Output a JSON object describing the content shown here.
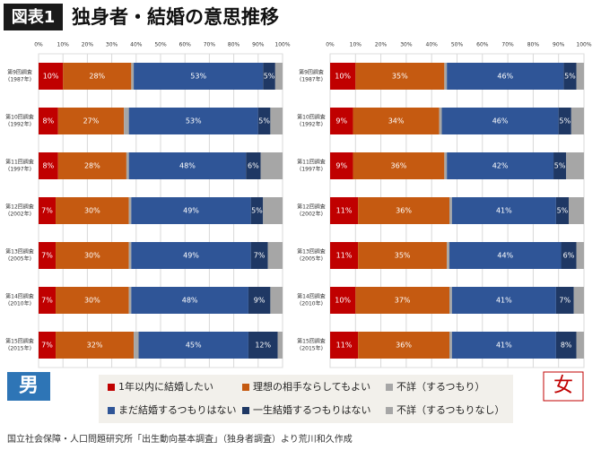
{
  "header": {
    "label": "図表1",
    "title": "独身者・結婚の意思推移"
  },
  "chart_data": [
    {
      "type": "stacked-bar-horizontal",
      "panel_label": "男",
      "categories": [
        [
          "第9回調査",
          "(1987年)"
        ],
        [
          "第10回調査",
          "(1992年)"
        ],
        [
          "第11回調査",
          "(1997年)"
        ],
        [
          "第12回調査",
          "(2002年)"
        ],
        [
          "第13回調査",
          "(2005年)"
        ],
        [
          "第14回調査",
          "(2010年)"
        ],
        [
          "第15回調査",
          "(2015年)"
        ]
      ],
      "xlim": [
        0,
        100
      ],
      "xticks": [
        {
          "value": 0,
          "label": "0%"
        },
        {
          "value": 10,
          "label": "10%"
        },
        {
          "value": 20,
          "label": "20%"
        },
        {
          "value": 30,
          "label": "30%"
        },
        {
          "value": 40,
          "label": "40%"
        },
        {
          "value": 50,
          "label": "50%"
        },
        {
          "value": 60,
          "label": "60%"
        },
        {
          "value": 70,
          "label": "70%"
        },
        {
          "value": 80,
          "label": "80%"
        },
        {
          "value": 90,
          "label": "90%"
        },
        {
          "value": 100,
          "label": "100%"
        }
      ],
      "grid": true,
      "series": [
        {
          "name": "1年以内に結婚したい",
          "color": "#c00000",
          "values": [
            10,
            8,
            8,
            7,
            7,
            7,
            7
          ],
          "value_labels": [
            "10%",
            "8%",
            "8%",
            "7%",
            "7%",
            "7%",
            "7%"
          ]
        },
        {
          "name": "理想の相手ならしてもよい",
          "color": "#c55a11",
          "values": [
            28,
            27,
            28,
            30,
            30,
            30,
            32
          ],
          "value_labels": [
            "28%",
            "27%",
            "28%",
            "30%",
            "30%",
            "30%",
            "32%"
          ]
        },
        {
          "name": "不詳（するつもり）",
          "color": "#a6a6a6",
          "values": [
            1,
            2,
            1,
            1,
            1,
            1,
            2
          ]
        },
        {
          "name": "まだ結婚するつもりはない",
          "color": "#2f5597",
          "values": [
            53,
            53,
            48,
            49,
            49,
            48,
            45
          ],
          "value_labels": [
            "53%",
            "53%",
            "48%",
            "49%",
            "49%",
            "48%",
            "45%"
          ]
        },
        {
          "name": "一生結婚するつもりはない",
          "color": "#1f3864",
          "values": [
            5,
            5,
            6,
            5,
            7,
            9,
            12
          ],
          "value_labels": [
            "5%",
            "5%",
            "6%",
            "5%",
            "7%",
            "9%",
            "12%"
          ]
        },
        {
          "name": "不詳（するつもりなし）",
          "color": "#a6a6a6",
          "values": [
            3,
            5,
            9,
            8,
            6,
            5,
            2
          ]
        }
      ]
    },
    {
      "type": "stacked-bar-horizontal",
      "panel_label": "女",
      "categories": [
        [
          "第9回調査",
          "(1987年)"
        ],
        [
          "第10回調査",
          "(1992年)"
        ],
        [
          "第11回調査",
          "(1997年)"
        ],
        [
          "第12回調査",
          "(2002年)"
        ],
        [
          "第13回調査",
          "(2005年)"
        ],
        [
          "第14回調査",
          "(2010年)"
        ],
        [
          "第15回調査",
          "(2015年)"
        ]
      ],
      "xlim": [
        0,
        100
      ],
      "xticks": [
        {
          "value": 0,
          "label": "0%"
        },
        {
          "value": 10,
          "label": "10%"
        },
        {
          "value": 20,
          "label": "20%"
        },
        {
          "value": 30,
          "label": "30%"
        },
        {
          "value": 40,
          "label": "40%"
        },
        {
          "value": 50,
          "label": "50%"
        },
        {
          "value": 60,
          "label": "60%"
        },
        {
          "value": 70,
          "label": "70%"
        },
        {
          "value": 80,
          "label": "80%"
        },
        {
          "value": 90,
          "label": "90%"
        },
        {
          "value": 100,
          "label": "100%"
        }
      ],
      "grid": true,
      "series": [
        {
          "color": "#c00000",
          "values": [
            10,
            9,
            9,
            11,
            11,
            10,
            11
          ],
          "value_labels": [
            "10%",
            "9%",
            "9%",
            "11%",
            "11%",
            "10%",
            "11%"
          ]
        },
        {
          "color": "#c55a11",
          "values": [
            35,
            34,
            36,
            36,
            35,
            37,
            36
          ],
          "value_labels": [
            "35%",
            "34%",
            "36%",
            "36%",
            "35%",
            "37%",
            "36%"
          ]
        },
        {
          "color": "#a6a6a6",
          "values": [
            1,
            1,
            1,
            1,
            1,
            1,
            1
          ]
        },
        {
          "color": "#2f5597",
          "values": [
            46,
            46,
            42,
            41,
            44,
            41,
            41
          ],
          "value_labels": [
            "46%",
            "46%",
            "42%",
            "41%",
            "44%",
            "41%",
            "41%"
          ]
        },
        {
          "color": "#1f3864",
          "values": [
            5,
            5,
            5,
            5,
            6,
            7,
            8
          ],
          "value_labels": [
            "5%",
            "5%",
            "5%",
            "5%",
            "6%",
            "7%",
            "8%"
          ]
        },
        {
          "color": "#a6a6a6",
          "values": [
            3,
            5,
            7,
            6,
            3,
            4,
            3
          ]
        }
      ]
    }
  ],
  "footer": "国立社会保障・人口問題研究所「出生動向基本調査」（独身者調査）より荒川和久作成"
}
